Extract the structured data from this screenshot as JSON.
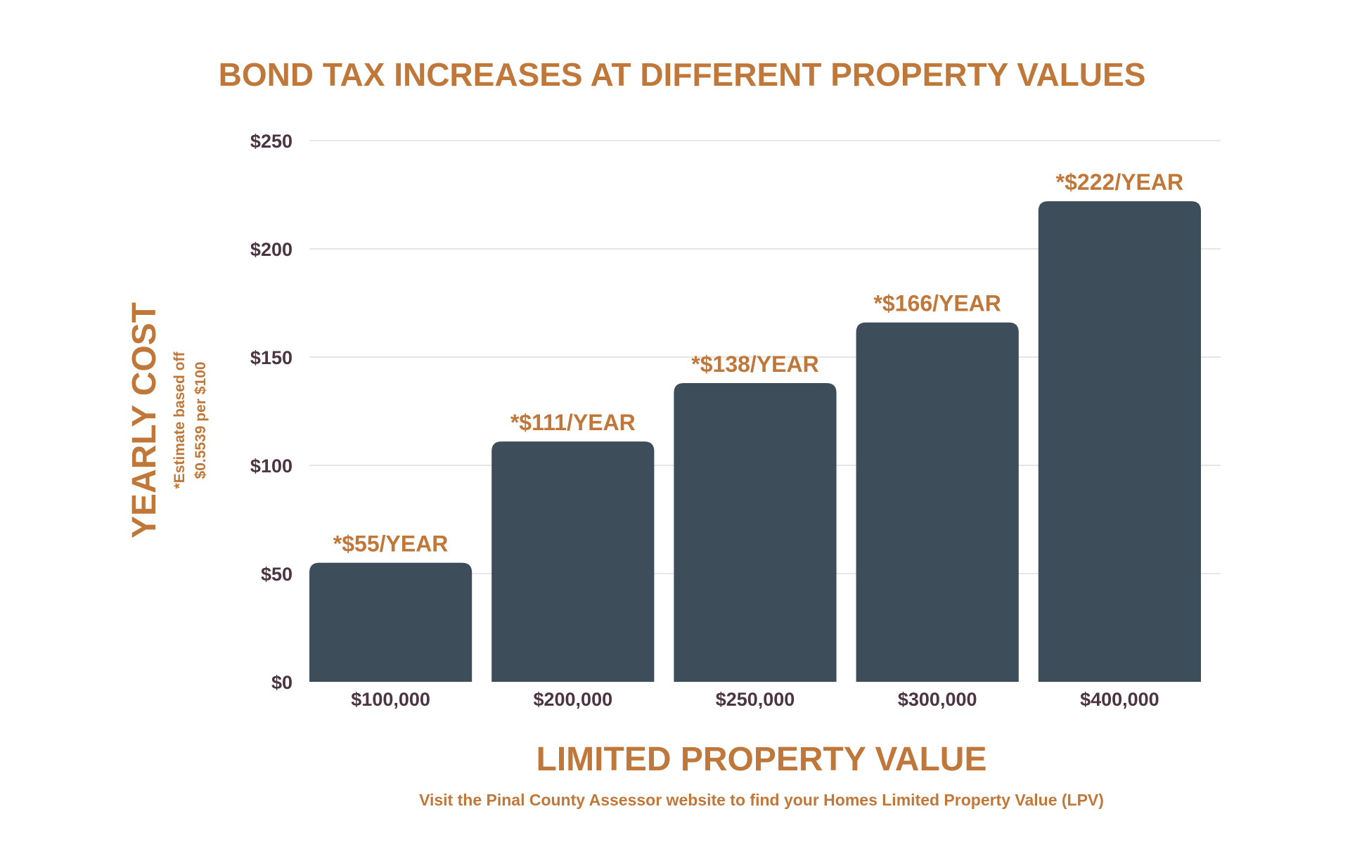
{
  "colors": {
    "accent": "#C0773A",
    "bar": "#3D4D5A",
    "axis_text": "#4A3540",
    "grid": "#DDDDDD",
    "background": "#FFFFFF"
  },
  "chart_data": {
    "type": "bar",
    "title": "BOND TAX INCREASES AT DIFFERENT PROPERTY VALUES",
    "xlabel": "LIMITED PROPERTY VALUE",
    "ylabel": "YEARLY COST",
    "ylabel_note_line1": "*Estimate based off",
    "ylabel_note_line2": "$0.5539 per $100",
    "footnote": "Visit the Pinal County Assessor website to find your Homes Limited Property Value (LPV)",
    "categories": [
      "$100,000",
      "$200,000",
      "$250,000",
      "$300,000",
      "$400,000"
    ],
    "values": [
      55,
      111,
      138,
      166,
      222
    ],
    "data_labels": [
      "*$55/YEAR",
      "*$111/YEAR",
      "*$138/YEAR",
      "*$166/YEAR",
      "*$222/YEAR"
    ],
    "yticks": [
      0,
      50,
      100,
      150,
      200,
      250
    ],
    "ytick_labels": [
      "$0",
      "$50",
      "$100",
      "$150",
      "$200",
      "$250"
    ],
    "ylim": [
      0,
      250
    ],
    "grid": true,
    "legend": "none"
  }
}
